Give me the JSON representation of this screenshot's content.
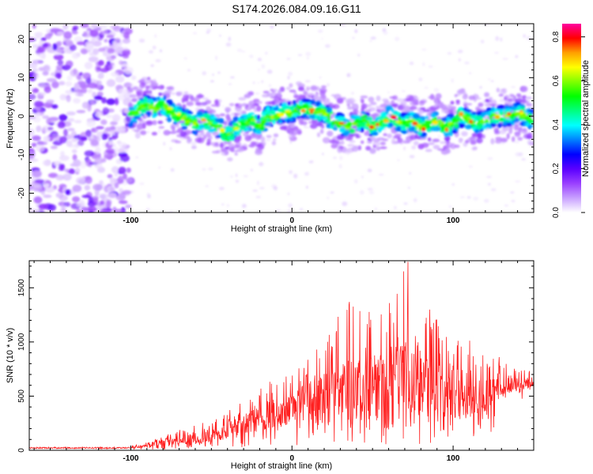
{
  "figure": {
    "title": "S174.2026.084.09.16.G11"
  },
  "chart_data": [
    {
      "type": "heatmap",
      "xlabel": "Height of straight line (km)",
      "ylabel": "Frequency (Hz)",
      "xlim": [
        -163,
        150
      ],
      "ylim": [
        -25,
        24
      ],
      "xticks": [
        -100,
        0,
        100
      ],
      "xtick_labels": [
        "-100",
        "0",
        "100"
      ],
      "yticks": [
        -20,
        -10,
        0,
        10,
        20
      ],
      "ytick_labels": [
        "-20",
        "-10",
        "0",
        "10",
        "20"
      ],
      "noise_region": [
        -163,
        -100
      ],
      "signal_trace": {
        "x": [
          -100,
          -95,
          -90,
          -85,
          -80,
          -75,
          -70,
          -65,
          -60,
          -55,
          -50,
          -45,
          -40,
          -35,
          -30,
          -25,
          -20,
          -15,
          -10,
          -5,
          0,
          5,
          10,
          15,
          20,
          25,
          30,
          35,
          40,
          45,
          50,
          55,
          60,
          65,
          70,
          75,
          80,
          85,
          90,
          95,
          100,
          105,
          110,
          115,
          120,
          125,
          130,
          135,
          140,
          145,
          150
        ],
        "frequency": [
          0,
          2,
          3,
          2,
          3,
          1,
          0,
          -1,
          -2,
          -1,
          -2,
          -3,
          -5,
          -3,
          -2,
          -1,
          -3,
          0,
          0,
          1,
          1,
          2,
          2,
          1,
          1,
          -1,
          -2,
          -3,
          -2,
          -1,
          -3,
          -2,
          0,
          -1,
          -2,
          -1,
          -3,
          -2,
          -1,
          -3,
          -2,
          0,
          -1,
          -2,
          -1,
          0,
          0,
          0,
          1,
          0,
          -1
        ]
      },
      "colorbar": {
        "label": "Normalized spectral amplitude",
        "range": [
          0,
          0.86
        ],
        "ticks": [
          0.0,
          0.2,
          0.4,
          0.6,
          0.8
        ],
        "tick_labels": [
          "0.0",
          "0.2",
          "0.4",
          "0.6",
          "0.8"
        ],
        "colors": [
          "#ffffff",
          "#c8a0ff",
          "#9a40ff",
          "#5a00ff",
          "#0000ff",
          "#0080ff",
          "#00ffff",
          "#00ff80",
          "#00ff00",
          "#80ff00",
          "#ffff00",
          "#ffa000",
          "#ff0000",
          "#ff00a0"
        ]
      }
    },
    {
      "type": "line",
      "xlabel": "Height of straight line (km)",
      "ylabel": "SNR (10 * v/v)",
      "xlim": [
        -163,
        150
      ],
      "ylim": [
        0,
        1750
      ],
      "xticks": [
        -100,
        0,
        100
      ],
      "xtick_labels": [
        "-100",
        "0",
        "100"
      ],
      "yticks": [
        0,
        500,
        1000,
        1500
      ],
      "ytick_labels": [
        "0",
        "500",
        "1000",
        "1500"
      ],
      "color": "#ff2020",
      "series": [
        {
          "name": "SNR",
          "x": [
            -163,
            -140,
            -120,
            -100,
            -95,
            -90,
            -85,
            -80,
            -75,
            -70,
            -65,
            -60,
            -55,
            -50,
            -45,
            -40,
            -35,
            -30,
            -25,
            -20,
            -15,
            -10,
            -5,
            0,
            5,
            10,
            15,
            20,
            25,
            30,
            35,
            40,
            45,
            50,
            55,
            60,
            65,
            70,
            75,
            80,
            85,
            90,
            95,
            100,
            105,
            110,
            115,
            120,
            125,
            130,
            135,
            140,
            145,
            150
          ],
          "values": [
            22,
            22,
            22,
            22,
            30,
            45,
            60,
            75,
            85,
            95,
            100,
            110,
            120,
            135,
            150,
            170,
            200,
            230,
            260,
            280,
            300,
            320,
            340,
            370,
            400,
            420,
            440,
            470,
            490,
            500,
            510,
            520,
            525,
            530,
            535,
            540,
            545,
            550,
            555,
            550,
            545,
            540,
            535,
            530,
            525,
            520,
            515,
            510,
            520,
            560,
            590,
            600,
            610,
            620
          ],
          "envelope_hi": [
            35,
            35,
            35,
            40,
            60,
            90,
            120,
            150,
            170,
            190,
            210,
            240,
            270,
            300,
            330,
            360,
            420,
            480,
            540,
            600,
            640,
            680,
            700,
            720,
            800,
            900,
            1000,
            1100,
            1200,
            1300,
            1400,
            1350,
            1300,
            1450,
            1300,
            1400,
            1500,
            1740,
            1500,
            1400,
            1350,
            1300,
            1250,
            1200,
            1150,
            1100,
            1000,
            950,
            900,
            850,
            800,
            750,
            760,
            770
          ],
          "peak": {
            "x": 72,
            "y": 1740
          }
        }
      ]
    }
  ]
}
